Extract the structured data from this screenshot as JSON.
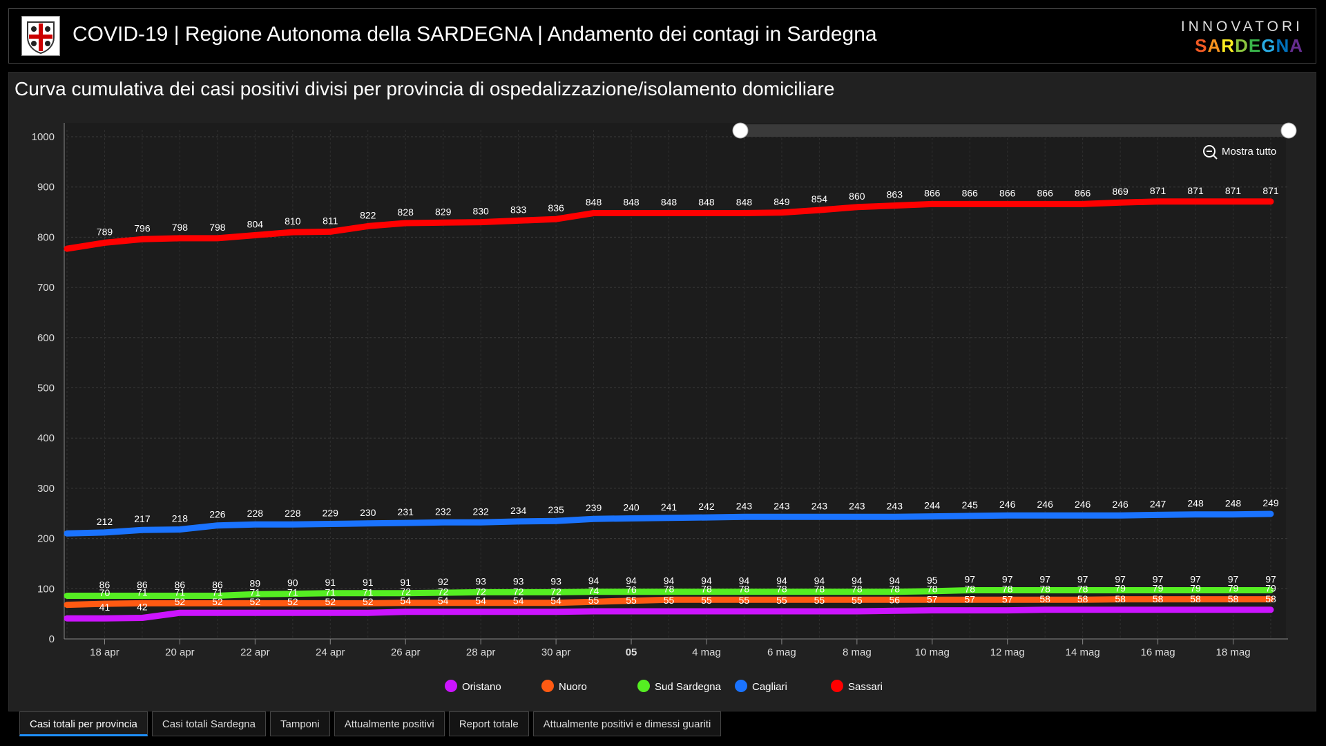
{
  "header": {
    "title": "COVID-19 | Regione Autonoma della SARDEGNA | Andamento dei contagi in Sardegna",
    "brand_top": "INNOVATORI",
    "brand_bottom": "SARDEGNA"
  },
  "panel": {
    "title": "Curva cumulativa dei casi positivi divisi per provincia di ospedalizzazione/isolamento domiciliare",
    "zoom_label": "Mostra tutto"
  },
  "tabs": [
    {
      "label": "Casi totali per provincia",
      "active": true
    },
    {
      "label": "Casi totali Sardegna",
      "active": false
    },
    {
      "label": "Tamponi",
      "active": false
    },
    {
      "label": "Attualmente positivi",
      "active": false
    },
    {
      "label": "Report totale",
      "active": false
    },
    {
      "label": "Attualmente positivi e dimessi guariti",
      "active": false
    }
  ],
  "chart_data": {
    "type": "line",
    "x": [
      "17 apr",
      "18 apr",
      "19 apr",
      "20 apr",
      "21 apr",
      "22 apr",
      "23 apr",
      "24 apr",
      "25 apr",
      "26 apr",
      "27 apr",
      "28 apr",
      "29 apr",
      "30 apr",
      "01 mag",
      "02 mag",
      "03 mag",
      "04 mag",
      "05 mag",
      "06 mag",
      "07 mag",
      "08 mag",
      "09 mag",
      "10 mag",
      "11 mag",
      "12 mag",
      "13 mag",
      "14 mag",
      "15 mag",
      "16 mag",
      "17 mag",
      "18 mag",
      "19 mag"
    ],
    "x_tick_labels": [
      "18 apr",
      "20 apr",
      "22 apr",
      "24 apr",
      "26 apr",
      "28 apr",
      "30 apr",
      "05",
      "4 mag",
      "6 mag",
      "8 mag",
      "10 mag",
      "12 mag",
      "14 mag",
      "16 mag",
      "18 mag"
    ],
    "x_tick_indices": [
      1,
      3,
      5,
      7,
      9,
      11,
      13,
      15,
      17,
      19,
      21,
      23,
      25,
      27,
      29,
      31
    ],
    "ylim": [
      0,
      1000
    ],
    "yticks": [
      0,
      100,
      200,
      300,
      400,
      500,
      600,
      700,
      800,
      900,
      1000
    ],
    "grid": true,
    "legend_position": "bottom",
    "series": [
      {
        "name": "Sassari",
        "color": "#ff0000",
        "values": [
          777,
          789,
          796,
          798,
          798,
          804,
          810,
          811,
          822,
          828,
          829,
          830,
          833,
          836,
          848,
          848,
          848,
          848,
          848,
          849,
          854,
          860,
          863,
          866,
          866,
          866,
          866,
          866,
          869,
          871,
          871,
          871,
          871
        ]
      },
      {
        "name": "Cagliari",
        "color": "#1a73ff",
        "values": [
          210,
          212,
          217,
          218,
          226,
          228,
          228,
          229,
          230,
          231,
          232,
          232,
          234,
          235,
          239,
          240,
          241,
          242,
          243,
          243,
          243,
          243,
          243,
          244,
          245,
          246,
          246,
          246,
          246,
          247,
          248,
          248,
          249
        ]
      },
      {
        "name": "Sud Sardegna",
        "color": "#55ee22",
        "values": [
          86,
          86,
          86,
          86,
          86,
          89,
          90,
          91,
          91,
          91,
          92,
          93,
          93,
          93,
          94,
          94,
          94,
          94,
          94,
          94,
          94,
          94,
          94,
          95,
          97,
          97,
          97,
          97,
          97,
          97,
          97,
          97,
          97
        ]
      },
      {
        "name": "Nuoro",
        "color": "#ff5a12",
        "values": [
          68,
          70,
          71,
          71,
          71,
          71,
          71,
          71,
          71,
          72,
          72,
          72,
          72,
          72,
          74,
          76,
          78,
          78,
          78,
          78,
          78,
          78,
          78,
          78,
          78,
          78,
          78,
          78,
          79,
          79,
          79,
          79,
          79
        ]
      },
      {
        "name": "Oristano",
        "color": "#cc14ff",
        "values": [
          41,
          41,
          42,
          52,
          52,
          52,
          52,
          52,
          52,
          54,
          54,
          54,
          54,
          54,
          55,
          55,
          55,
          55,
          55,
          55,
          55,
          55,
          56,
          57,
          57,
          57,
          58,
          58,
          58,
          58,
          58,
          58,
          58
        ]
      }
    ]
  }
}
